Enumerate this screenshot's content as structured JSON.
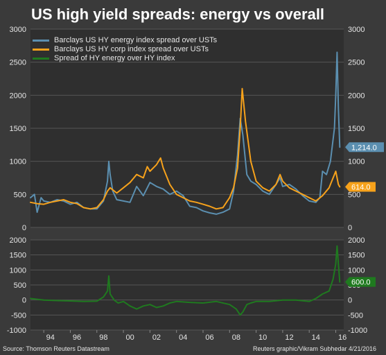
{
  "title": "US high yield spreads: energy vs overall",
  "source": "Source: Thomson Reuters Datastream",
  "credit": "Reuters graphic/Vikram Subhedar 4/21/2016",
  "colors": {
    "background": "#3a3a3a",
    "energy": "#5b8fb0",
    "corp": "#f7a21b",
    "spread": "#1f7a1f",
    "grid": "#555555"
  },
  "chart_data": [
    {
      "type": "line",
      "legend_position": "top-left",
      "ylim": [
        0,
        3000
      ],
      "yticks": [
        0,
        500,
        1000,
        1500,
        2000,
        2500,
        3000
      ],
      "xlim": [
        1993.0,
        2016.6
      ],
      "series": [
        {
          "name": "Barclays US HY energy index spread over USTs",
          "color": "#5b8fb0",
          "end_label": "1,214.0",
          "x": [
            1993.0,
            1993.3,
            1993.5,
            1993.8,
            1994.0,
            1994.5,
            1995.0,
            1995.5,
            1996.0,
            1996.5,
            1997.0,
            1997.5,
            1998.0,
            1998.5,
            1998.8,
            1998.9,
            1999.0,
            1999.2,
            1999.5,
            2000.0,
            2000.5,
            2001.0,
            2001.5,
            2002.0,
            2002.5,
            2003.0,
            2003.5,
            2004.0,
            2004.5,
            2005.0,
            2005.5,
            2006.0,
            2006.5,
            2007.0,
            2007.5,
            2008.0,
            2008.3,
            2008.6,
            2008.8,
            2009.0,
            2009.3,
            2009.6,
            2010.0,
            2010.5,
            2011.0,
            2011.5,
            2011.8,
            2012.0,
            2012.5,
            2013.0,
            2013.5,
            2014.0,
            2014.5,
            2014.8,
            2015.0,
            2015.3,
            2015.6,
            2015.9,
            2016.0,
            2016.1,
            2016.2,
            2016.3
          ],
          "y": [
            450,
            500,
            230,
            450,
            400,
            380,
            420,
            400,
            350,
            380,
            300,
            280,
            280,
            400,
            700,
            1000,
            800,
            550,
            420,
            400,
            380,
            620,
            480,
            680,
            620,
            580,
            500,
            550,
            480,
            320,
            300,
            250,
            220,
            200,
            230,
            280,
            550,
            1100,
            1650,
            1400,
            800,
            700,
            650,
            550,
            500,
            650,
            750,
            620,
            650,
            580,
            480,
            400,
            380,
            450,
            850,
            800,
            1000,
            1500,
            2000,
            2650,
            1800,
            1214
          ]
        },
        {
          "name": "Barclays US HY corp index spread over USTs",
          "color": "#f7a21b",
          "end_label": "614.0",
          "x": [
            1993.0,
            1993.5,
            1994.0,
            1994.5,
            1995.0,
            1995.5,
            1996.0,
            1996.5,
            1997.0,
            1997.5,
            1998.0,
            1998.5,
            1998.8,
            1999.0,
            1999.5,
            2000.0,
            2000.5,
            2001.0,
            2001.5,
            2001.8,
            2002.0,
            2002.5,
            2002.8,
            2003.0,
            2003.5,
            2004.0,
            2004.5,
            2005.0,
            2005.5,
            2006.0,
            2006.5,
            2007.0,
            2007.5,
            2008.0,
            2008.3,
            2008.6,
            2008.8,
            2008.95,
            2009.2,
            2009.6,
            2010.0,
            2010.5,
            2011.0,
            2011.5,
            2011.8,
            2012.0,
            2012.5,
            2013.0,
            2013.5,
            2014.0,
            2014.5,
            2015.0,
            2015.5,
            2015.9,
            2016.0,
            2016.1,
            2016.2,
            2016.3
          ],
          "y": [
            380,
            360,
            350,
            380,
            400,
            420,
            380,
            360,
            300,
            280,
            300,
            420,
            550,
            600,
            520,
            600,
            680,
            800,
            750,
            920,
            850,
            950,
            1050,
            900,
            650,
            500,
            450,
            400,
            380,
            350,
            320,
            280,
            300,
            450,
            600,
            900,
            1500,
            2100,
            1600,
            1000,
            700,
            600,
            550,
            650,
            800,
            700,
            600,
            550,
            500,
            450,
            400,
            480,
            600,
            800,
            850,
            750,
            650,
            614
          ]
        }
      ]
    },
    {
      "type": "line",
      "ylim": [
        -1000,
        2000
      ],
      "yticks": [
        -1000,
        -500,
        0,
        500,
        1000,
        1500,
        2000
      ],
      "xlim": [
        1993.0,
        2016.6
      ],
      "xticks": [
        "94",
        "96",
        "98",
        "00",
        "02",
        "04",
        "06",
        "08",
        "10",
        "12",
        "14",
        "16"
      ],
      "series": [
        {
          "name": "Spread of HY energy over HY index",
          "color": "#1f7a1f",
          "end_label": "600.0",
          "x": [
            1993.0,
            1994.0,
            1995.0,
            1996.0,
            1997.0,
            1998.0,
            1998.5,
            1998.8,
            1998.9,
            1999.0,
            1999.3,
            1999.6,
            2000.0,
            2000.5,
            2001.0,
            2001.5,
            2002.0,
            2002.5,
            2003.0,
            2003.5,
            2004.0,
            2005.0,
            2006.0,
            2007.0,
            2008.0,
            2008.5,
            2008.8,
            2009.0,
            2009.3,
            2009.6,
            2010.0,
            2011.0,
            2012.0,
            2013.0,
            2014.0,
            2014.5,
            2015.0,
            2015.5,
            2015.8,
            2016.0,
            2016.1,
            2016.2,
            2016.3
          ],
          "y": [
            50,
            0,
            -20,
            -30,
            -50,
            -40,
            100,
            300,
            800,
            200,
            0,
            -100,
            -50,
            -200,
            -300,
            -200,
            -150,
            -250,
            -200,
            -100,
            -50,
            -80,
            -100,
            -50,
            -150,
            -300,
            -500,
            -400,
            -150,
            -100,
            -50,
            -50,
            0,
            0,
            -50,
            50,
            200,
            300,
            700,
            1200,
            1800,
            1200,
            600
          ]
        }
      ]
    }
  ]
}
